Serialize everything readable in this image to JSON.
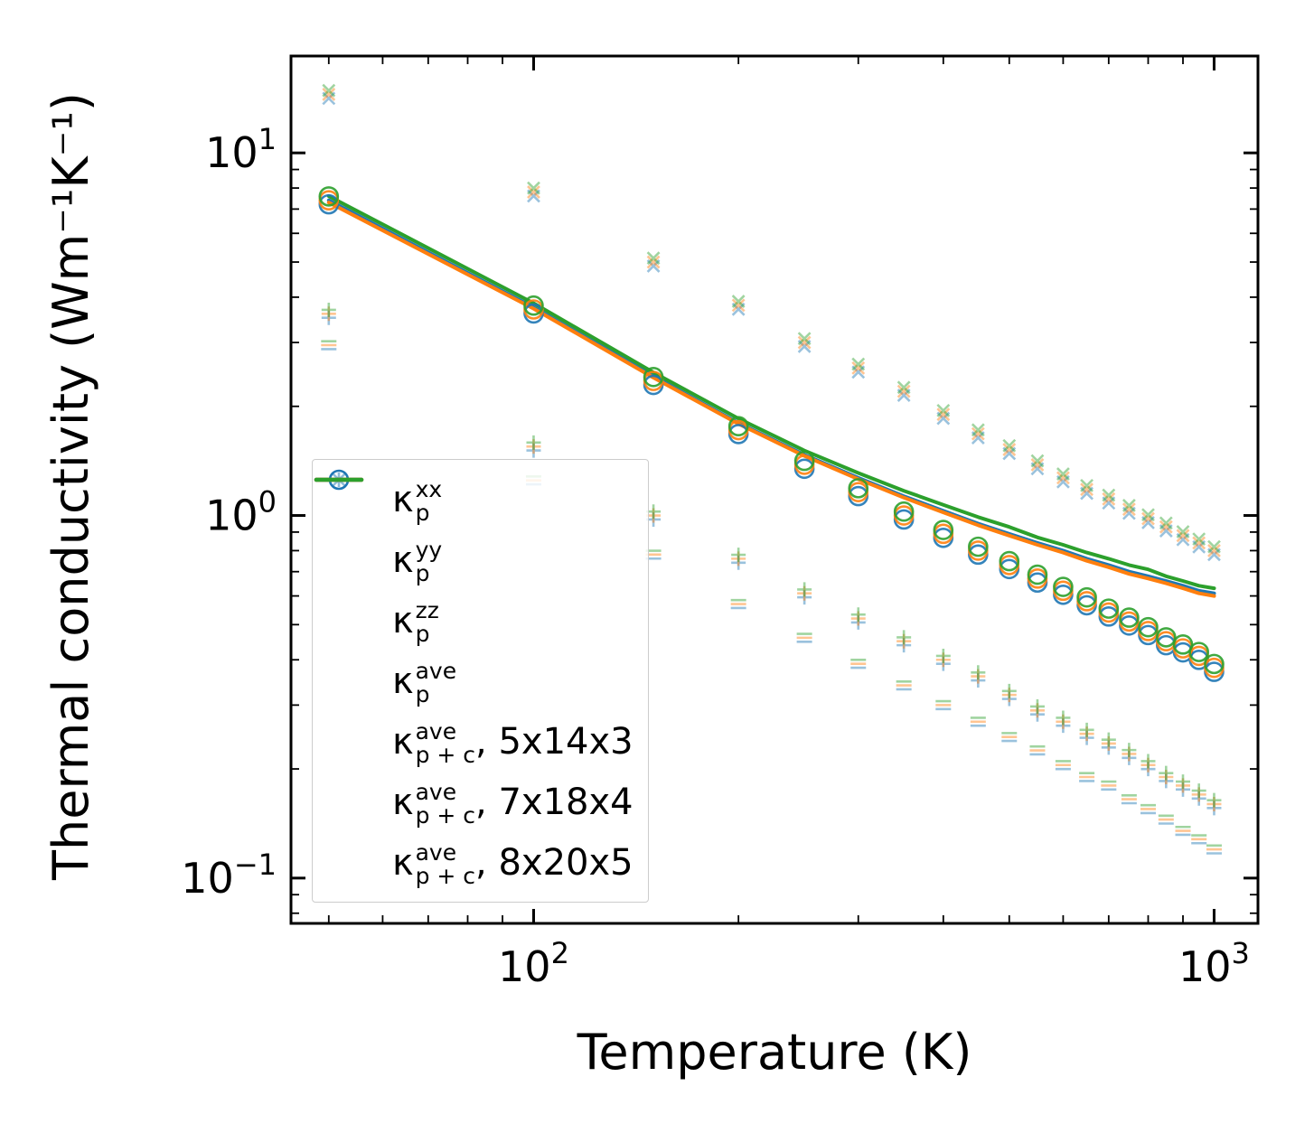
{
  "chart_data": {
    "type": "scatter+line",
    "xlabel": "Temperature (K)",
    "ylabel": "Thermal conductivity (Wm⁻¹K⁻¹)",
    "xscale": "log",
    "yscale": "log",
    "xlim": [
      44,
      1160
    ],
    "ylim": [
      0.075,
      18.5
    ],
    "grid": false,
    "legend_position": "center-left",
    "x_ticks": [
      {
        "value": 100,
        "base": "10",
        "exp": "2"
      },
      {
        "value": 1000,
        "base": "10",
        "exp": "3"
      }
    ],
    "y_ticks": [
      {
        "value": 0.1,
        "base": "10",
        "exp": "−1"
      },
      {
        "value": 1,
        "base": "10",
        "exp": "0"
      },
      {
        "value": 10,
        "base": "10",
        "exp": "1"
      }
    ],
    "temperatures": [
      50,
      100,
      150,
      200,
      250,
      300,
      350,
      400,
      450,
      500,
      550,
      600,
      650,
      700,
      750,
      800,
      850,
      900,
      950,
      1000
    ],
    "marker_series": [
      {
        "name": "kappa_p_xx",
        "symbol": "plus",
        "values": [
          3.6,
          1.55,
          1.0,
          0.76,
          0.61,
          0.52,
          0.45,
          0.4,
          0.36,
          0.32,
          0.29,
          0.27,
          0.25,
          0.235,
          0.22,
          0.205,
          0.19,
          0.18,
          0.17,
          0.16
        ]
      },
      {
        "name": "kappa_p_yy",
        "symbol": "cross",
        "values": [
          14.5,
          7.8,
          5.0,
          3.8,
          3.0,
          2.55,
          2.2,
          1.9,
          1.68,
          1.52,
          1.38,
          1.27,
          1.18,
          1.11,
          1.04,
          0.98,
          0.93,
          0.88,
          0.84,
          0.8
        ]
      },
      {
        "name": "kappa_p_zz",
        "symbol": "dash",
        "values": [
          2.95,
          1.25,
          0.78,
          0.57,
          0.46,
          0.39,
          0.34,
          0.3,
          0.27,
          0.245,
          0.225,
          0.205,
          0.19,
          0.18,
          0.165,
          0.155,
          0.145,
          0.135,
          0.128,
          0.12
        ]
      },
      {
        "name": "kappa_p_ave",
        "symbol": "circle",
        "values": [
          7.4,
          3.7,
          2.35,
          1.72,
          1.38,
          1.16,
          1.0,
          0.89,
          0.8,
          0.73,
          0.67,
          0.62,
          0.58,
          0.54,
          0.51,
          0.48,
          0.45,
          0.43,
          0.41,
          0.38
        ]
      }
    ],
    "grids": [
      {
        "name": "5x14x3",
        "color": "#1f77b4",
        "offset_factor": 0.975,
        "line_values": [
          7.4,
          3.75,
          2.42,
          1.8,
          1.47,
          1.27,
          1.13,
          1.03,
          0.95,
          0.89,
          0.84,
          0.8,
          0.76,
          0.73,
          0.7,
          0.68,
          0.66,
          0.64,
          0.62,
          0.61
        ]
      },
      {
        "name": "7x18x4",
        "color": "#ff7f0e",
        "offset_factor": 1.0,
        "line_values": [
          7.3,
          3.72,
          2.4,
          1.79,
          1.46,
          1.26,
          1.12,
          1.02,
          0.94,
          0.88,
          0.83,
          0.79,
          0.75,
          0.72,
          0.69,
          0.67,
          0.65,
          0.63,
          0.61,
          0.6
        ]
      },
      {
        "name": "8x20x5",
        "color": "#2ca02c",
        "offset_factor": 1.025,
        "line_values": [
          7.6,
          3.85,
          2.48,
          1.85,
          1.51,
          1.31,
          1.17,
          1.07,
          0.99,
          0.93,
          0.87,
          0.83,
          0.79,
          0.76,
          0.73,
          0.71,
          0.68,
          0.66,
          0.64,
          0.63
        ]
      }
    ],
    "legend": {
      "entries": [
        {
          "kind": "marker",
          "symbol": "plus",
          "color": "#1f77b4",
          "opacity": 0.5,
          "kappa": "κ",
          "sup": "xx",
          "sub": "p",
          "suffix": ""
        },
        {
          "kind": "marker",
          "symbol": "cross",
          "color": "#1f77b4",
          "opacity": 0.5,
          "kappa": "κ",
          "sup": "yy",
          "sub": "p",
          "suffix": ""
        },
        {
          "kind": "marker",
          "symbol": "dash",
          "color": "#1f77b4",
          "opacity": 0.5,
          "kappa": "κ",
          "sup": "zz",
          "sub": "p",
          "suffix": ""
        },
        {
          "kind": "marker",
          "symbol": "circle",
          "color": "#1f77b4",
          "opacity": 1.0,
          "kappa": "κ",
          "sup": "ave",
          "sub": "p",
          "suffix": ""
        },
        {
          "kind": "line",
          "symbol": "line",
          "color": "#1f77b4",
          "opacity": 1.0,
          "kappa": "κ",
          "sup": "ave",
          "sub": "p + c",
          "suffix": ", 5x14x3"
        },
        {
          "kind": "line",
          "symbol": "line",
          "color": "#ff7f0e",
          "opacity": 1.0,
          "kappa": "κ",
          "sup": "ave",
          "sub": "p + c",
          "suffix": ", 7x18x4"
        },
        {
          "kind": "line",
          "symbol": "line",
          "color": "#2ca02c",
          "opacity": 1.0,
          "kappa": "κ",
          "sup": "ave",
          "sub": "p + c",
          "suffix": ", 8x20x5"
        }
      ]
    },
    "marker_style": {
      "light_opacity": 0.45,
      "circle_opacity": 0.9,
      "line_width": 4
    }
  }
}
